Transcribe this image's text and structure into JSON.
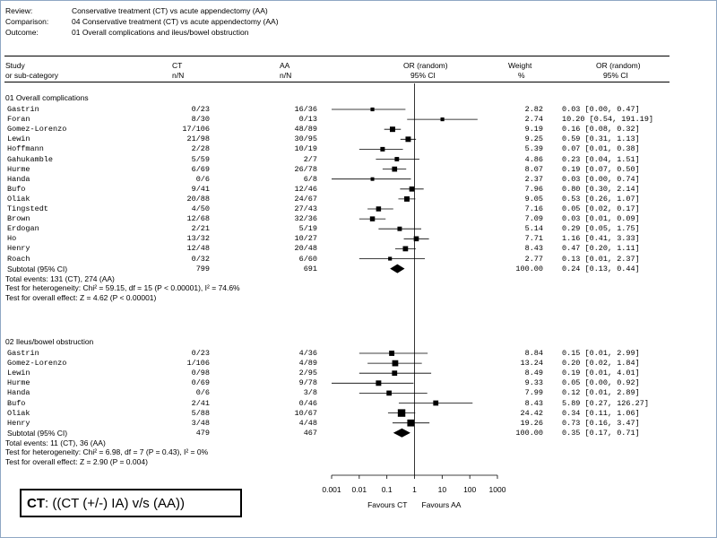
{
  "header": {
    "review_label": "Review:",
    "review_value": "Conservative treatment (CT) vs acute appendectomy (AA)",
    "comparison_label": "Comparison:",
    "comparison_value": "04 Conservative treatment (CT) vs acute appendectomy (AA)",
    "outcome_label": "Outcome:",
    "outcome_value": "01 Overall complications and ileus/bowel obstruction"
  },
  "columns": {
    "study1": "Study",
    "study2": "or sub-category",
    "ct1": "CT",
    "ct2": "n/N",
    "aa1": "AA",
    "aa2": "n/N",
    "or1": "OR (random)",
    "or2": "95% CI",
    "w1": "Weight",
    "w2": "%",
    "orv1": "OR (random)",
    "orv2": "95% CI"
  },
  "caption": {
    "bold": "CT",
    "rest": ": ((CT (+/-) IA)  v/s (AA))"
  },
  "chart_data": {
    "type": "forest",
    "x_scale": "log",
    "xlim": [
      0.001,
      1000
    ],
    "ticks": [
      "0.001",
      "0.01",
      "0.1",
      "1",
      "10",
      "100",
      "1000"
    ],
    "tick_values": [
      0.001,
      0.01,
      0.1,
      1,
      10,
      100,
      1000
    ],
    "favours_left": "Favours CT",
    "favours_right": "Favours AA",
    "groups": [
      {
        "title": "01 Overall complications",
        "studies": [
          {
            "name": "Gastrin",
            "ct": "0/23",
            "aa": "16/36",
            "weight": "2.82",
            "or_text": "0.03 [0.00, 0.47]",
            "or": 0.03,
            "lo": 0.0,
            "hi": 0.47
          },
          {
            "name": "Foran",
            "ct": "8/30",
            "aa": "0/13",
            "weight": "2.74",
            "or_text": "10.20 [0.54, 191.19]",
            "or": 10.2,
            "lo": 0.54,
            "hi": 191.19
          },
          {
            "name": "Gomez-Lorenzo",
            "ct": "17/106",
            "aa": "48/89",
            "weight": "9.19",
            "or_text": "0.16 [0.08, 0.32]",
            "or": 0.16,
            "lo": 0.08,
            "hi": 0.32
          },
          {
            "name": "Lewin",
            "ct": "21/98",
            "aa": "30/95",
            "weight": "9.25",
            "or_text": "0.59 [0.31, 1.13]",
            "or": 0.59,
            "lo": 0.31,
            "hi": 1.13
          },
          {
            "name": "Hoffmann",
            "ct": "2/28",
            "aa": "10/19",
            "weight": "5.39",
            "or_text": "0.07 [0.01, 0.38]",
            "or": 0.07,
            "lo": 0.01,
            "hi": 0.38
          },
          {
            "name": "Gahukamble",
            "ct": "5/59",
            "aa": "2/7",
            "weight": "4.86",
            "or_text": "0.23 [0.04, 1.51]",
            "or": 0.23,
            "lo": 0.04,
            "hi": 1.51
          },
          {
            "name": "Hurme",
            "ct": "6/69",
            "aa": "26/78",
            "weight": "8.07",
            "or_text": "0.19 [0.07, 0.50]",
            "or": 0.19,
            "lo": 0.07,
            "hi": 0.5
          },
          {
            "name": "Handa",
            "ct": "0/6",
            "aa": "6/8",
            "weight": "2.37",
            "or_text": "0.03 [0.00, 0.74]",
            "or": 0.03,
            "lo": 0.0,
            "hi": 0.74
          },
          {
            "name": "Bufo",
            "ct": "9/41",
            "aa": "12/46",
            "weight": "7.96",
            "or_text": "0.80 [0.30, 2.14]",
            "or": 0.8,
            "lo": 0.3,
            "hi": 2.14
          },
          {
            "name": "Oliak",
            "ct": "20/88",
            "aa": "24/67",
            "weight": "9.05",
            "or_text": "0.53 [0.26, 1.07]",
            "or": 0.53,
            "lo": 0.26,
            "hi": 1.07
          },
          {
            "name": "Tingstedt",
            "ct": "4/50",
            "aa": "27/43",
            "weight": "7.16",
            "or_text": "0.05 [0.02, 0.17]",
            "or": 0.05,
            "lo": 0.02,
            "hi": 0.17
          },
          {
            "name": "Brown",
            "ct": "12/68",
            "aa": "32/36",
            "weight": "7.09",
            "or_text": "0.03 [0.01, 0.09]",
            "or": 0.03,
            "lo": 0.01,
            "hi": 0.09
          },
          {
            "name": "Erdogan",
            "ct": "2/21",
            "aa": "5/19",
            "weight": "5.14",
            "or_text": "0.29 [0.05, 1.75]",
            "or": 0.29,
            "lo": 0.05,
            "hi": 1.75
          },
          {
            "name": "Ho",
            "ct": "13/32",
            "aa": "10/27",
            "weight": "7.71",
            "or_text": "1.16 [0.41, 3.33]",
            "or": 1.16,
            "lo": 0.41,
            "hi": 3.33
          },
          {
            "name": "Henry",
            "ct": "12/48",
            "aa": "20/48",
            "weight": "8.43",
            "or_text": "0.47 [0.20, 1.11]",
            "or": 0.47,
            "lo": 0.2,
            "hi": 1.11
          },
          {
            "name": "Roach",
            "ct": "0/32",
            "aa": "6/60",
            "weight": "2.77",
            "or_text": "0.13 [0.01, 2.37]",
            "or": 0.13,
            "lo": 0.01,
            "hi": 2.37
          }
        ],
        "subtotal": {
          "name": "Subtotal (95% CI)",
          "ct": "799",
          "aa": "691",
          "weight": "100.00",
          "or_text": "0.24 [0.13, 0.44]",
          "or": 0.24,
          "lo": 0.13,
          "hi": 0.44
        },
        "notes": [
          "Total events: 131 (CT), 274 (AA)",
          "Test for heterogeneity: Chi² = 59.15, df = 15 (P < 0.00001), I² = 74.6%",
          "Test for overall effect: Z = 4.62 (P < 0.00001)"
        ]
      },
      {
        "title": "02 Ileus/bowel obstruction",
        "studies": [
          {
            "name": "Gastrin",
            "ct": "0/23",
            "aa": "4/36",
            "weight": "8.84",
            "or_text": "0.15 [0.01, 2.99]",
            "or": 0.15,
            "lo": 0.01,
            "hi": 2.99
          },
          {
            "name": "Gomez-Lorenzo",
            "ct": "1/106",
            "aa": "4/89",
            "weight": "13.24",
            "or_text": "0.20 [0.02, 1.84]",
            "or": 0.2,
            "lo": 0.02,
            "hi": 1.84
          },
          {
            "name": "Lewin",
            "ct": "0/98",
            "aa": "2/95",
            "weight": "8.49",
            "or_text": "0.19 [0.01, 4.01]",
            "or": 0.19,
            "lo": 0.01,
            "hi": 4.01
          },
          {
            "name": "Hurme",
            "ct": "0/69",
            "aa": "9/78",
            "weight": "9.33",
            "or_text": "0.05 [0.00, 0.92]",
            "or": 0.05,
            "lo": 0.0,
            "hi": 0.92
          },
          {
            "name": "Handa",
            "ct": "0/6",
            "aa": "3/8",
            "weight": "7.99",
            "or_text": "0.12 [0.01, 2.89]",
            "or": 0.12,
            "lo": 0.01,
            "hi": 2.89
          },
          {
            "name": "Bufo",
            "ct": "2/41",
            "aa": "0/46",
            "weight": "8.43",
            "or_text": "5.89 [0.27, 126.27]",
            "or": 5.89,
            "lo": 0.27,
            "hi": 126.27
          },
          {
            "name": "Oliak",
            "ct": "5/88",
            "aa": "10/67",
            "weight": "24.42",
            "or_text": "0.34 [0.11, 1.06]",
            "or": 0.34,
            "lo": 0.11,
            "hi": 1.06
          },
          {
            "name": "Henry",
            "ct": "3/48",
            "aa": "4/48",
            "weight": "19.26",
            "or_text": "0.73 [0.16, 3.47]",
            "or": 0.73,
            "lo": 0.16,
            "hi": 3.47
          }
        ],
        "subtotal": {
          "name": "Subtotal (95% CI)",
          "ct": "479",
          "aa": "467",
          "weight": "100.00",
          "or_text": "0.35 [0.17, 0.71]",
          "or": 0.35,
          "lo": 0.17,
          "hi": 0.71
        },
        "notes": [
          "Total events: 11 (CT), 36 (AA)",
          "Test for heterogeneity: Chi² = 6.98, df = 7 (P = 0.43), I² = 0%",
          "Test for overall effect: Z = 2.90 (P = 0.004)"
        ]
      }
    ]
  }
}
